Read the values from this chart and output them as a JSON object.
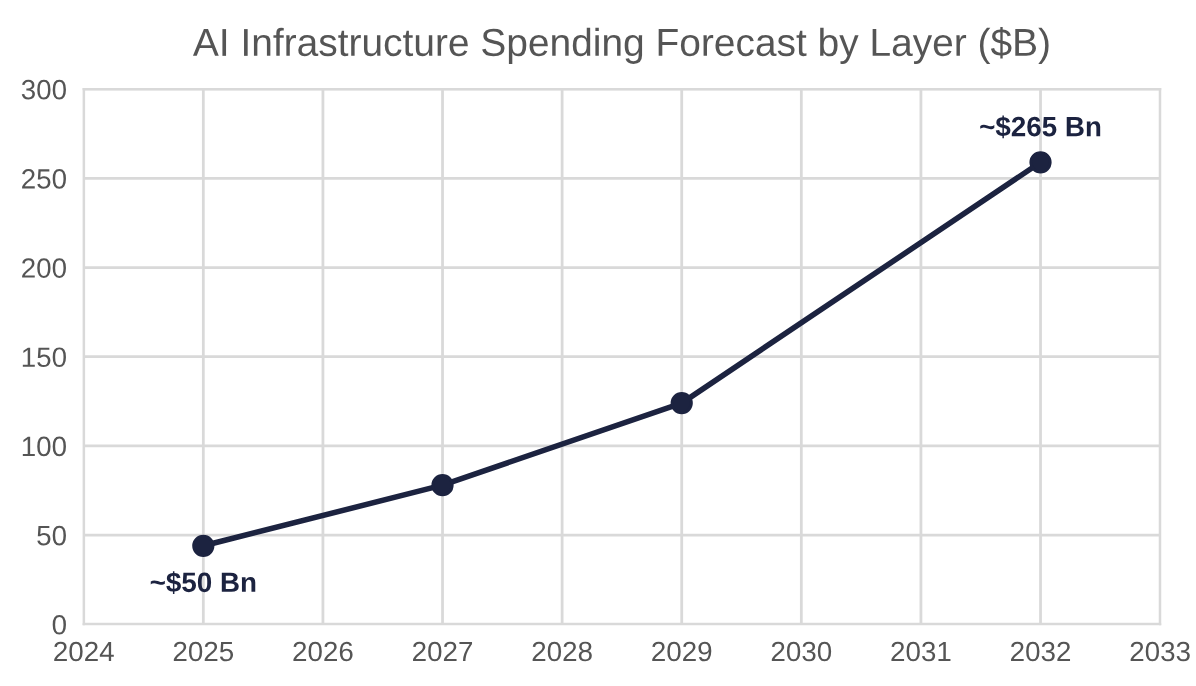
{
  "chart_data": {
    "type": "line",
    "title": "AI Infrastructure Spending Forecast by Layer ($B)",
    "x": [
      2025,
      2027,
      2029,
      2032
    ],
    "series": [
      {
        "color": "#1c2340",
        "values": [
          44,
          78,
          124,
          259
        ]
      }
    ],
    "xlim": [
      2024,
      2033
    ],
    "xticks": [
      2024,
      2025,
      2026,
      2027,
      2028,
      2029,
      2030,
      2031,
      2032,
      2033
    ],
    "ylim": [
      0,
      300
    ],
    "yticks": [
      0,
      50,
      100,
      150,
      200,
      250,
      300
    ],
    "grid": true,
    "marker": "circle",
    "line_style": "solid",
    "annotations": [
      {
        "text": "~$50 Bn",
        "x": 2025,
        "y": 44
      },
      {
        "text": "~$265 Bn",
        "x": 2032,
        "y": 259
      }
    ]
  }
}
